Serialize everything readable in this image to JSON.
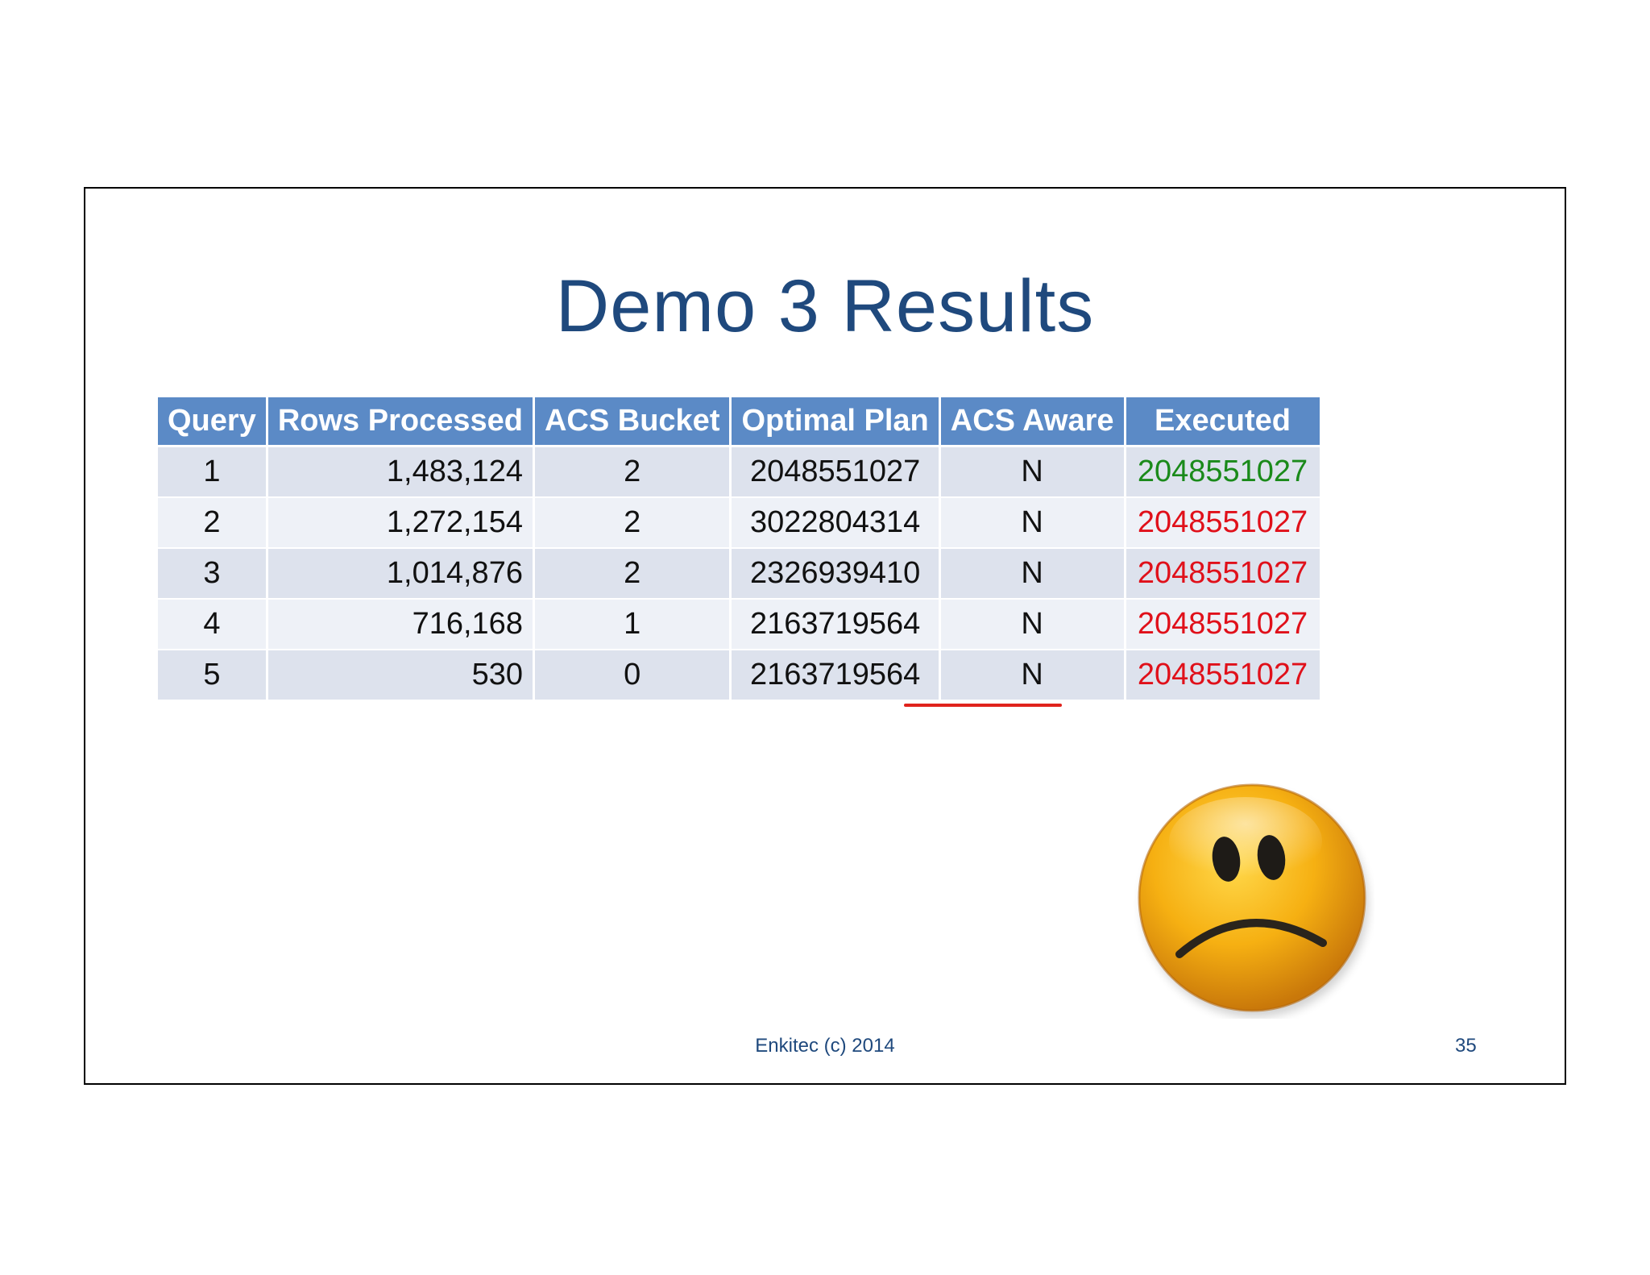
{
  "slide": {
    "title": "Demo 3 Results",
    "footer": "Enkitec (c) 2014",
    "page_number": "35"
  },
  "table": {
    "headers": [
      "Query",
      "Rows Processed",
      "ACS Bucket",
      "Optimal Plan",
      "ACS Aware",
      "Executed"
    ],
    "rows": [
      {
        "query": "1",
        "rows_processed": "1,483,124",
        "acs_bucket": "2",
        "optimal_plan": "2048551027",
        "acs_aware": "N",
        "executed": "2048551027",
        "executed_color": "#1a8a1a"
      },
      {
        "query": "2",
        "rows_processed": "1,272,154",
        "acs_bucket": "2",
        "optimal_plan": "3022804314",
        "acs_aware": "N",
        "executed": "2048551027",
        "executed_color": "#e0101a"
      },
      {
        "query": "3",
        "rows_processed": "1,014,876",
        "acs_bucket": "2",
        "optimal_plan": "2326939410",
        "acs_aware": "N",
        "executed": "2048551027",
        "executed_color": "#e0101a"
      },
      {
        "query": "4",
        "rows_processed": "716,168",
        "acs_bucket": "1",
        "optimal_plan": "2163719564",
        "acs_aware": "N",
        "executed": "2048551027",
        "executed_color": "#e0101a"
      },
      {
        "query": "5",
        "rows_processed": "530",
        "acs_bucket": "0",
        "optimal_plan": "2163719564",
        "acs_aware": "N",
        "executed": "2048551027",
        "executed_color": "#e0101a"
      }
    ]
  },
  "colors": {
    "title": "#1f497d",
    "header_bg": "#5b8ac6",
    "row_odd": "#dde2ed",
    "row_even": "#eef1f7",
    "match_green": "#1a8a1a",
    "mismatch_red": "#e0101a",
    "underline_red": "#e0231c"
  },
  "icons": {
    "face": "sad-face-icon"
  }
}
